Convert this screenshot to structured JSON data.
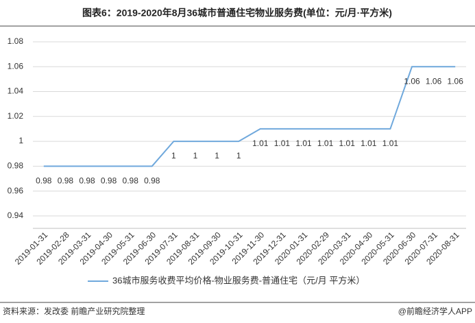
{
  "chart_data": {
    "type": "line",
    "title": "图表6：2019-2020年8月36城市普通住宅物业服务费(单位：元/月·平方米)",
    "categories": [
      "2019-01-31",
      "2019-02-28",
      "2019-03-31",
      "2019-04-30",
      "2019-05-31",
      "2019-06-30",
      "2019-07-31",
      "2019-08-31",
      "2019-09-30",
      "2019-10-31",
      "2019-11-30",
      "2019-12-31",
      "2020-01-31",
      "2020-02-29",
      "2020-03-31",
      "2020-04-30",
      "2020-05-31",
      "2020-06-30",
      "2020-07-31",
      "2020-08-31"
    ],
    "series": [
      {
        "name": "36城市服务收费平均价格-物业服务费-普通住宅（元/月 平方米）",
        "color": "#6fa8dc",
        "values": [
          0.98,
          0.98,
          0.98,
          0.98,
          0.98,
          0.98,
          1,
          1,
          1,
          1,
          1.01,
          1.01,
          1.01,
          1.01,
          1.01,
          1.01,
          1.01,
          1.06,
          1.06,
          1.06
        ]
      }
    ],
    "ylim": [
      0.93,
      1.08
    ],
    "yticks": [
      0.94,
      0.96,
      0.98,
      1,
      1.02,
      1.04,
      1.06,
      1.08
    ],
    "grid": true,
    "legend": "bottom",
    "source": "资料来源：发改委   前瞻产业研究院整理",
    "credit": "@前瞻经济学人APP"
  }
}
